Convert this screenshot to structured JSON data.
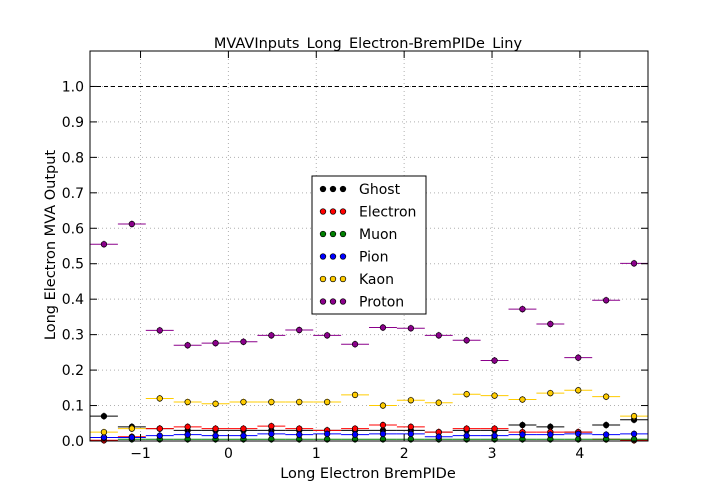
{
  "chart_data": {
    "type": "scatter",
    "title": "MVAVInputs_Long_Electron-BremPIDe_Liny",
    "xlabel": "Long Electron BremPIDe",
    "ylabel": "Long Electron MVA Output",
    "xlim": [
      -1.575,
      4.775
    ],
    "ylim": [
      0.0,
      1.1
    ],
    "bin_width": 0.3175,
    "grid": true,
    "legend_position": "center",
    "reference_line": {
      "y": 1.0,
      "style": "dashed"
    },
    "x_ticks": [
      -1,
      0,
      1,
      2,
      3,
      4
    ],
    "y_ticks": [
      "0.0",
      "0.1",
      "0.2",
      "0.3",
      "0.4",
      "0.5",
      "0.6",
      "0.7",
      "0.8",
      "0.9",
      "1.0"
    ],
    "x": [
      -1.4163,
      -1.0988,
      -0.7813,
      -0.4638,
      -0.1463,
      0.1713,
      0.4888,
      0.8063,
      1.1238,
      1.4413,
      1.7588,
      2.0763,
      2.3938,
      2.7113,
      3.0288,
      3.3463,
      3.6638,
      3.9813,
      4.2988,
      4.6163
    ],
    "series": [
      {
        "name": "Ghost",
        "color": "#000000",
        "values": [
          0.07,
          0.04,
          0.035,
          0.03,
          0.03,
          0.03,
          0.03,
          0.03,
          0.03,
          0.03,
          0.03,
          0.03,
          0.025,
          0.03,
          0.03,
          0.045,
          0.04,
          0.025,
          0.045,
          0.06
        ]
      },
      {
        "name": "Electron",
        "color": "#ff0000",
        "values": [
          0.002,
          0.012,
          0.035,
          0.04,
          0.035,
          0.035,
          0.042,
          0.035,
          0.03,
          0.035,
          0.045,
          0.04,
          0.025,
          0.035,
          0.035,
          0.025,
          0.025,
          0.025,
          0.005,
          0.002
        ]
      },
      {
        "name": "Muon",
        "color": "#008000",
        "values": [
          0.01,
          0.005,
          0.005,
          0.005,
          0.005,
          0.005,
          0.005,
          0.005,
          0.005,
          0.005,
          0.005,
          0.005,
          0.005,
          0.005,
          0.005,
          0.005,
          0.005,
          0.005,
          0.005,
          0.005
        ]
      },
      {
        "name": "Pion",
        "color": "#0000ff",
        "values": [
          0.01,
          0.01,
          0.015,
          0.018,
          0.015,
          0.015,
          0.02,
          0.018,
          0.02,
          0.018,
          0.02,
          0.02,
          0.012,
          0.015,
          0.015,
          0.018,
          0.018,
          0.02,
          0.018,
          0.02
        ]
      },
      {
        "name": "Kaon",
        "color": "#ffcc00",
        "values": [
          0.025,
          0.035,
          0.12,
          0.11,
          0.105,
          0.11,
          0.11,
          0.11,
          0.11,
          0.13,
          0.1,
          0.115,
          0.108,
          0.132,
          0.128,
          0.117,
          0.135,
          0.143,
          0.125,
          0.07
        ]
      },
      {
        "name": "Proton",
        "color": "#8b008b",
        "values": [
          0.555,
          0.612,
          0.312,
          0.27,
          0.276,
          0.28,
          0.298,
          0.313,
          0.298,
          0.273,
          0.32,
          0.318,
          0.298,
          0.284,
          0.227,
          0.372,
          0.33,
          0.235,
          0.397,
          0.501
        ]
      }
    ]
  }
}
